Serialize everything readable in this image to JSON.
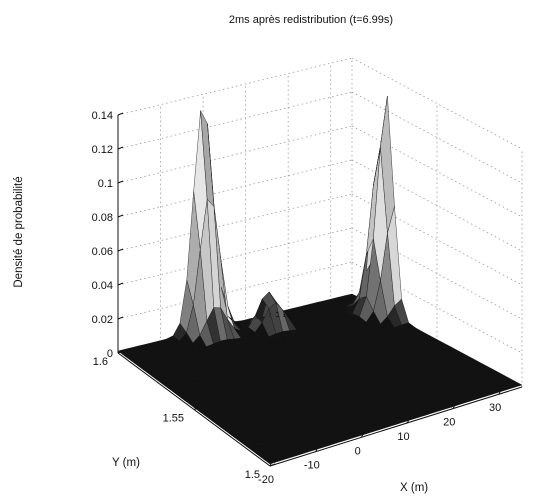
{
  "chart_data": {
    "type": "surface",
    "title": "2ms après redistribution (t=6.99s)",
    "xlabel": "X (m)",
    "ylabel": "Y (m)",
    "zlabel": "Densité de probabilité",
    "xlim": [
      -20,
      35
    ],
    "ylim": [
      1.5,
      1.6
    ],
    "zlim": [
      0,
      0.14
    ],
    "x_ticks": [
      "-20",
      "-10",
      "0",
      "10",
      "20",
      "30"
    ],
    "y_ticks": [
      "1.5",
      "1.55",
      "1.6"
    ],
    "z_ticks": [
      "0",
      "0.02",
      "0.04",
      "0.06",
      "0.08",
      "0.1",
      "0.12",
      "0.14"
    ],
    "grid": true,
    "colormap": "grayscale",
    "peaks": [
      {
        "x": 0,
        "y": 1.6,
        "z": 0.134
      },
      {
        "x": 35,
        "y": 1.58,
        "z": 0.13
      },
      {
        "x": 12,
        "y": 1.59,
        "z": 0.024
      }
    ]
  }
}
